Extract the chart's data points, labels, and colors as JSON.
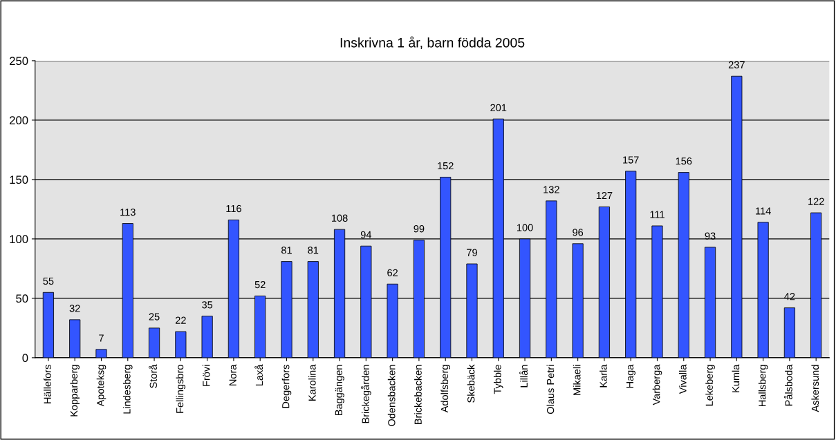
{
  "chart_data": {
    "type": "bar",
    "title": "Inskrivna 1 år, barn födda 2005",
    "categories": [
      "Hällefors",
      "Kopparberg",
      "Apoteksg",
      "Lindesberg",
      "Storå",
      "Fellingsbro",
      "Frövi",
      "Nora",
      "Laxå",
      "Degerfors",
      "Karolina",
      "Baggängen",
      "Brickegården",
      "Odensbacken",
      "Brickebacken",
      "Adolfsberg",
      "Skebäck",
      "Tybble",
      "Lillån",
      "Olaus Petri",
      "Mikaeli",
      "Karla",
      "Haga",
      "Varberga",
      "Vivalla",
      "Lekeberg",
      "Kumla",
      "Hallsberg",
      "Pålsboda",
      "Askersund"
    ],
    "values": [
      55,
      32,
      7,
      113,
      25,
      22,
      35,
      116,
      52,
      81,
      81,
      108,
      94,
      62,
      99,
      152,
      79,
      201,
      100,
      132,
      96,
      127,
      157,
      111,
      156,
      93,
      237,
      114,
      42,
      122
    ],
    "color": "#3355ff",
    "ylim": [
      0,
      250
    ],
    "yticks": [
      0,
      50,
      100,
      150,
      200,
      250
    ],
    "grid": "y",
    "data_labels": true
  }
}
